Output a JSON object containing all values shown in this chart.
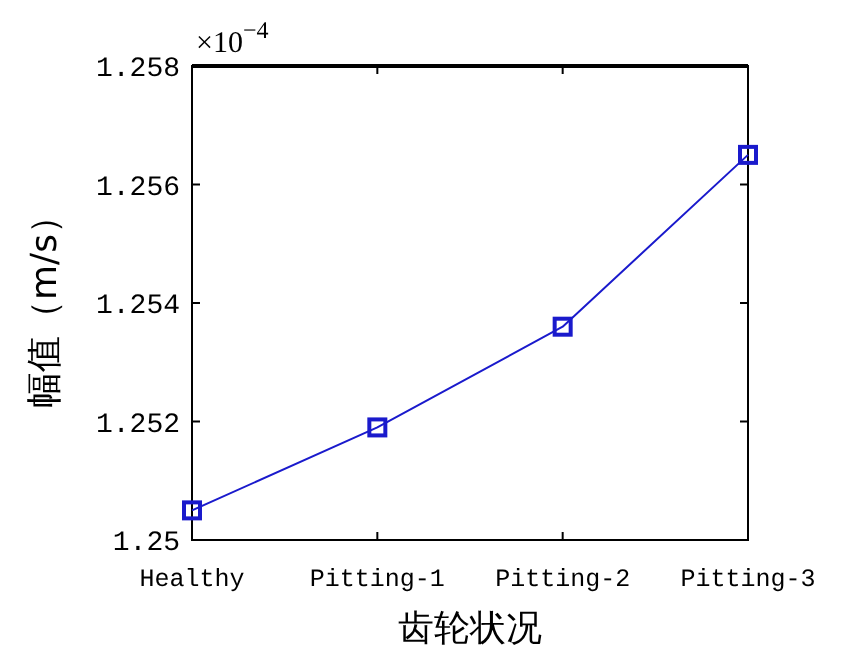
{
  "chart_data": {
    "type": "line",
    "xlabel": "齿轮状况",
    "ylabel": "幅值（m/s）",
    "annotations": [
      "×10$^{−4}$"
    ],
    "categories": [
      "Healthy",
      "Pitting-1",
      "Pitting-2",
      "Pitting-3"
    ],
    "series": [
      {
        "color": "#1a1acc",
        "values": [
          1.2505,
          1.2519,
          1.2536,
          1.2565
        ]
      }
    ],
    "ylim": [
      1.25,
      1.258
    ],
    "yticks": [
      1.25,
      1.252,
      1.254,
      1.256,
      1.258
    ],
    "marker": "square",
    "line_style": "solid",
    "grid": false
  }
}
